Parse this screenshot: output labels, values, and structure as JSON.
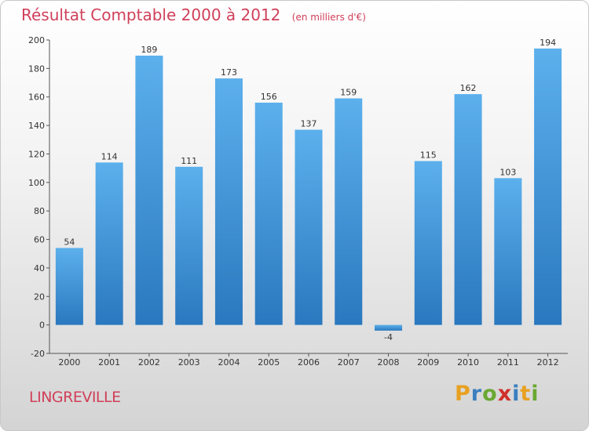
{
  "header": {
    "title": "Résultat Comptable 2000 à 2012",
    "subtitle": "(en milliers d'€)"
  },
  "commune": "LINGREVILLE",
  "logo": {
    "letters": [
      "P",
      "r",
      "o",
      "x",
      "i",
      "t",
      "i"
    ],
    "colors": [
      "#e8a020",
      "#3a7fc0",
      "#6aa832",
      "#d0302a",
      "#3a7fc0",
      "#e8a020",
      "#6aa832"
    ]
  },
  "chart_data": {
    "type": "bar",
    "title": "Résultat Comptable 2000 à 2012",
    "xlabel": "",
    "ylabel": "",
    "categories": [
      "2000",
      "2001",
      "2002",
      "2003",
      "2004",
      "2005",
      "2006",
      "2007",
      "2008",
      "2009",
      "2010",
      "2011",
      "2012"
    ],
    "values": [
      54,
      114,
      189,
      111,
      173,
      156,
      137,
      159,
      -4,
      115,
      162,
      103,
      194
    ],
    "ylim": [
      -20,
      200
    ],
    "yticks": [
      -20,
      0,
      20,
      40,
      60,
      80,
      100,
      120,
      140,
      160,
      180,
      200
    ],
    "bar_color": "#4a9ede",
    "grid": false
  }
}
